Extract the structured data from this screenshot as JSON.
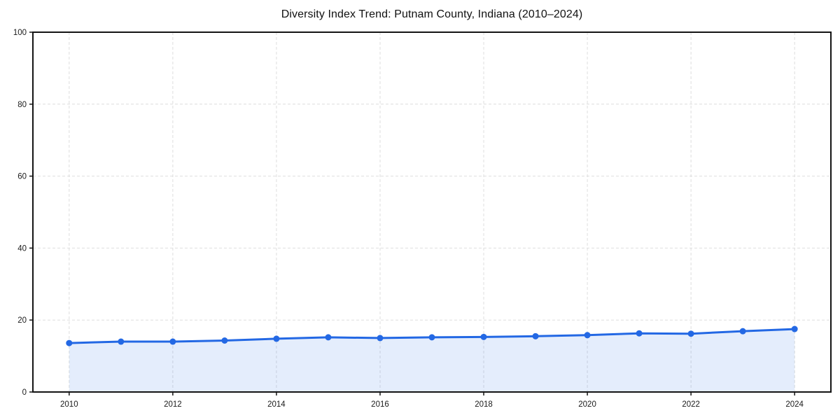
{
  "figure": {
    "title": "Diversity Index Trend: Putnam County, Indiana (2010–2024)"
  },
  "chart_data": {
    "type": "area",
    "title": "Diversity Index Trend: Putnam County, Indiana (2010–2024)",
    "x": [
      2010,
      2011,
      2012,
      2013,
      2014,
      2015,
      2016,
      2017,
      2018,
      2019,
      2020,
      2021,
      2022,
      2023,
      2024
    ],
    "series": [
      {
        "name": "Diversity Index",
        "values": [
          13.6,
          14.0,
          14.0,
          14.3,
          14.8,
          15.2,
          15.0,
          15.2,
          15.3,
          15.5,
          15.8,
          16.3,
          16.2,
          16.9,
          17.5
        ]
      }
    ],
    "xlabel": "",
    "ylabel": "",
    "xlim": [
      2009.3,
      2024.7
    ],
    "ylim": [
      0,
      100
    ],
    "xticks": [
      2010,
      2012,
      2014,
      2016,
      2018,
      2020,
      2022,
      2024
    ],
    "yticks": [
      0,
      20,
      40,
      60,
      80,
      100
    ],
    "grid": true,
    "grid_style": "dashed",
    "legend": "none",
    "colors": {
      "line": "#2368e4",
      "marker": "#2368e4",
      "fill": "rgba(35, 104, 228, 0.12)",
      "grid": "#dedede",
      "spine": "#141414",
      "tick_label": "#1a1a1a",
      "background": "#ffffff"
    },
    "marker": "circle",
    "area_fill": true
  }
}
